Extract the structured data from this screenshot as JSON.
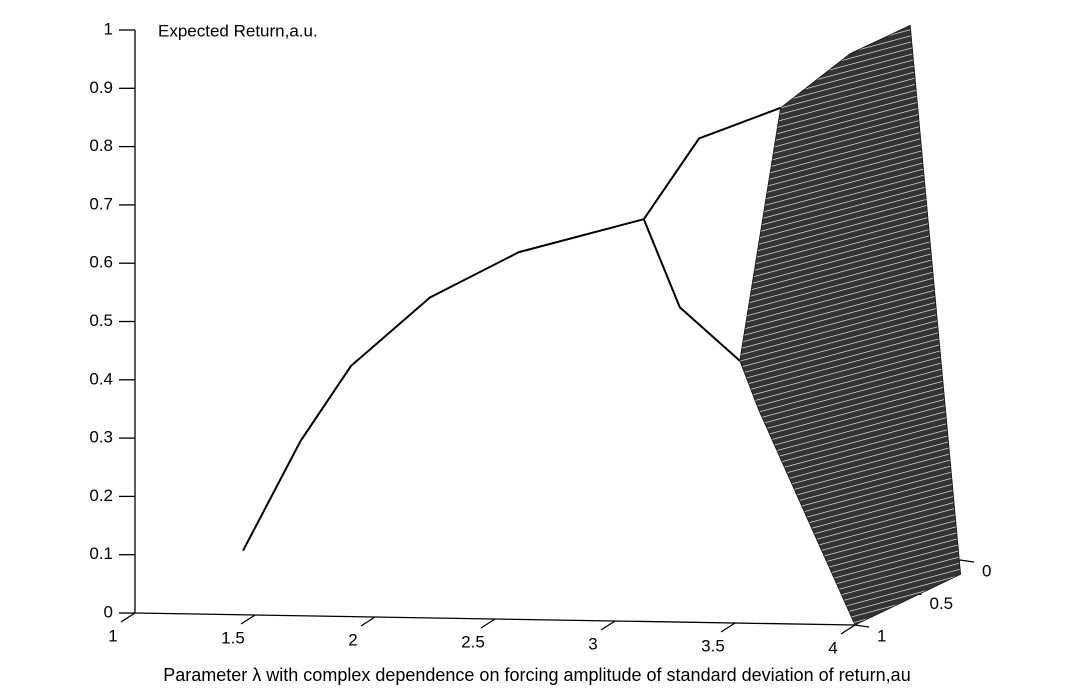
{
  "chart_data": {
    "type": "line",
    "y_label": "Expected Return,a.u.",
    "x_label": "Parameter λ with complex dependence on forcing amplitude of standard deviation of return,au",
    "xlim": [
      1,
      4
    ],
    "xticks": [
      1,
      1.5,
      2,
      2.5,
      3,
      3.5,
      4
    ],
    "ylim": [
      0,
      1
    ],
    "yticks": [
      0,
      0.1,
      0.2,
      0.3,
      0.4,
      0.5,
      0.6,
      0.7,
      0.8,
      0.9,
      1
    ],
    "zlim": [
      0,
      1
    ],
    "zticks": [
      0,
      0.5,
      1
    ],
    "series": [
      {
        "color": "#000000",
        "x": [
          1.45,
          1.69,
          1.9,
          2.23,
          2.6,
          3.12
        ],
        "values": [
          0.11,
          0.3,
          0.43,
          0.55,
          0.63,
          0.69
        ]
      },
      {
        "color": "#000000",
        "x": [
          3.12,
          3.35,
          3.69
        ],
        "values": [
          0.69,
          0.83,
          0.885
        ]
      },
      {
        "color": "#000000",
        "x": [
          3.12,
          3.27,
          3.52
        ],
        "values": [
          0.69,
          0.54,
          0.45
        ]
      },
      {
        "color": "#111111",
        "fill": true,
        "x": [
          3.52,
          3.69,
          3.98,
          4.23,
          4.44,
          4.0,
          3.6,
          3.52
        ],
        "values": [
          0.45,
          0.885,
          0.98,
          1.03,
          0.09,
          0,
          0.365,
          0.45
        ]
      }
    ]
  }
}
